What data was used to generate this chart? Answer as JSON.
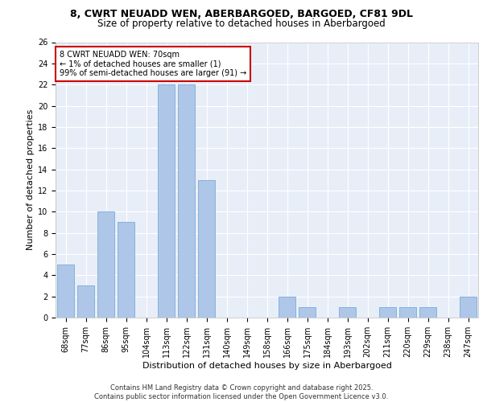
{
  "title1": "8, CWRT NEUADD WEN, ABERBARGOED, BARGOED, CF81 9DL",
  "title2": "Size of property relative to detached houses in Aberbargoed",
  "xlabel": "Distribution of detached houses by size in Aberbargoed",
  "ylabel": "Number of detached properties",
  "categories": [
    "68sqm",
    "77sqm",
    "86sqm",
    "95sqm",
    "104sqm",
    "113sqm",
    "122sqm",
    "131sqm",
    "140sqm",
    "149sqm",
    "158sqm",
    "166sqm",
    "175sqm",
    "184sqm",
    "193sqm",
    "202sqm",
    "211sqm",
    "220sqm",
    "229sqm",
    "238sqm",
    "247sqm"
  ],
  "values": [
    5,
    3,
    10,
    9,
    0,
    22,
    22,
    13,
    0,
    0,
    0,
    2,
    1,
    0,
    1,
    0,
    1,
    1,
    1,
    0,
    2
  ],
  "bar_color": "#aec6e8",
  "bar_edge_color": "#7aadd4",
  "annotation_box_text": "8 CWRT NEUADD WEN: 70sqm\n← 1% of detached houses are smaller (1)\n99% of semi-detached houses are larger (91) →",
  "annotation_box_color": "#cc0000",
  "annotation_box_fill": "#ffffff",
  "background_color": "#e8eef8",
  "grid_color": "#ffffff",
  "ylim": [
    0,
    26
  ],
  "yticks": [
    0,
    2,
    4,
    6,
    8,
    10,
    12,
    14,
    16,
    18,
    20,
    22,
    24,
    26
  ],
  "footer_text": "Contains HM Land Registry data © Crown copyright and database right 2025.\nContains public sector information licensed under the Open Government Licence v3.0.",
  "title1_fontsize": 9,
  "title2_fontsize": 8.5,
  "ylabel_fontsize": 8,
  "xlabel_fontsize": 8,
  "tick_fontsize": 7,
  "footer_fontsize": 6
}
